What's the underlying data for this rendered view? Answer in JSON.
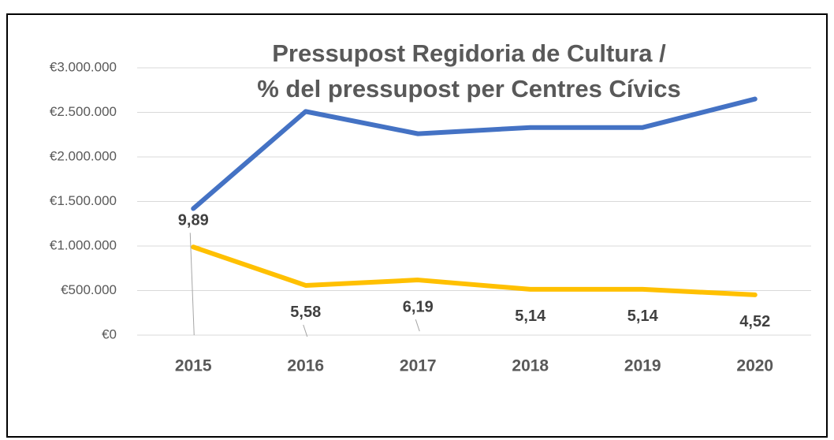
{
  "chart_data": {
    "type": "line",
    "title": [
      "Pressupost Regidoria de Cultura /",
      "% del pressupost per Centres Cívics"
    ],
    "categories": [
      "2015",
      "2016",
      "2017",
      "2018",
      "2019",
      "2020"
    ],
    "series": [
      {
        "color": "#4472c4",
        "values": [
          1420000,
          2510000,
          2260000,
          2330000,
          2330000,
          2650000
        ]
      },
      {
        "color": "#ffc000",
        "values": [
          989000,
          558000,
          619000,
          514000,
          514000,
          452000
        ],
        "value_labels": [
          "9,89",
          "5,58",
          "6,19",
          "5,14",
          "5,14",
          "4,52"
        ]
      }
    ],
    "ylim": [
      0,
      3000000
    ],
    "yticks": [
      {
        "value": 0,
        "label": "€0"
      },
      {
        "value": 500000,
        "label": "€500.000"
      },
      {
        "value": 1000000,
        "label": "€1.000.000"
      },
      {
        "value": 1500000,
        "label": "€1.500.000"
      },
      {
        "value": 2000000,
        "label": "€2.000.000"
      },
      {
        "value": 2500000,
        "label": "€2.500.000"
      },
      {
        "value": 3000000,
        "label": "€3.000.000"
      }
    ],
    "grid": true
  }
}
